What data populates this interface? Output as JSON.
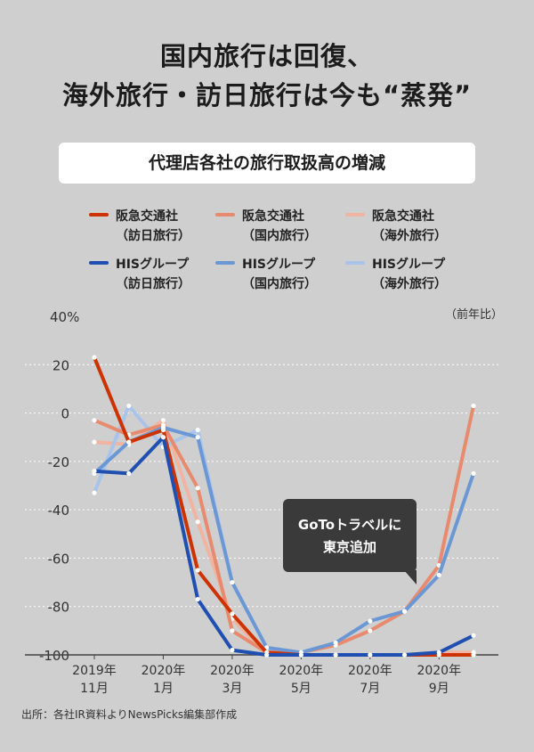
{
  "header": {
    "headline_line1": "国内旅行は回復、",
    "headline_line2": "海外旅行・訪日旅行は今も“蒸発”",
    "subtitle": "代理店各社の旅行取扱高の増減"
  },
  "legend": [
    {
      "line1": "阪急交通社",
      "line2": "（訪日旅行）",
      "color": "#cc3300"
    },
    {
      "line1": "阪急交通社",
      "line2": "（国内旅行）",
      "color": "#e88a6e"
    },
    {
      "line1": "阪急交通社",
      "line2": "（海外旅行）",
      "color": "#f0b4a0"
    },
    {
      "line1": "HISグループ",
      "line2": "（訪日旅行）",
      "color": "#1f4fb0"
    },
    {
      "line1": "HISグループ",
      "line2": "（国内旅行）",
      "color": "#6b98d4"
    },
    {
      "line1": "HISグループ",
      "line2": "（海外旅行）",
      "color": "#a9c4ea"
    }
  ],
  "annotation": {
    "line1": "GoToトラベルに",
    "line2": "東京追加"
  },
  "unit_label": "（前年比）",
  "source": "出所：各社IR資料よりNewsPicks編集部作成",
  "chart_data": {
    "type": "line",
    "ylim": [
      -100,
      40
    ],
    "y_ticks": [
      "40%",
      "20",
      "0",
      "-20",
      "-40",
      "-60",
      "-80",
      "-100"
    ],
    "y_tick_values": [
      40,
      20,
      0,
      -20,
      -40,
      -60,
      -80,
      -100
    ],
    "x_months": [
      "2019-11",
      "2019-12",
      "2020-01",
      "2020-02",
      "2020-03",
      "2020-04",
      "2020-05",
      "2020-06",
      "2020-07",
      "2020-08",
      "2020-09",
      "2020-10"
    ],
    "x_tick_labels": [
      {
        "line1": "2019年",
        "line2": "11月"
      },
      {
        "line1": "2020年",
        "line2": "1月"
      },
      {
        "line1": "2020年",
        "line2": "3月"
      },
      {
        "line1": "2020年",
        "line2": "5月"
      },
      {
        "line1": "2020年",
        "line2": "7月"
      },
      {
        "line1": "2020年",
        "line2": "9月"
      }
    ],
    "x_tick_index": [
      0,
      2,
      4,
      6,
      8,
      10
    ],
    "series": [
      {
        "name": "阪急交通社（海外旅行）",
        "color": "#f0b4a0",
        "values": [
          -12,
          -13,
          -3,
          -45,
          -85,
          -100,
          -100,
          -100,
          -100,
          -100,
          -99,
          -99
        ]
      },
      {
        "name": "HISグループ（海外旅行）",
        "color": "#a9c4ea",
        "values": [
          -33,
          3,
          -14,
          -7,
          -70,
          -97,
          -100,
          -100,
          -100,
          -100,
          -100,
          -100
        ]
      },
      {
        "name": "阪急交通社（国内旅行）",
        "color": "#e88a6e",
        "values": [
          -3,
          -9,
          -5,
          -31,
          -90,
          -99,
          -99,
          -96,
          -90,
          -82,
          -63,
          3
        ]
      },
      {
        "name": "HISグループ（国内旅行）",
        "color": "#6b98d4",
        "values": [
          -25,
          -12,
          -6,
          -10,
          -70,
          -97,
          -99,
          -95,
          -86,
          -82,
          -67,
          -25
        ]
      },
      {
        "name": "阪急交通社（訪日旅行）",
        "color": "#cc3300",
        "values": [
          23,
          -12,
          -7,
          -65,
          -83,
          -99,
          -100,
          -100,
          -100,
          -100,
          -100,
          -100
        ]
      },
      {
        "name": "HISグループ（訪日旅行）",
        "color": "#1f4fb0",
        "values": [
          -24,
          -25,
          -10,
          -77,
          -98,
          -100,
          -100,
          -100,
          -100,
          -100,
          -99,
          -92
        ]
      }
    ]
  }
}
